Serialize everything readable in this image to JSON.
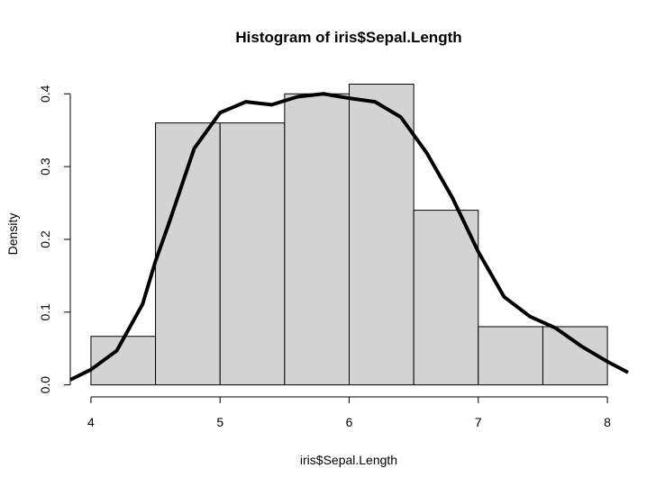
{
  "chart_data": {
    "type": "histogram",
    "title": "Histogram of iris$Sepal.Length",
    "xlabel": "iris$Sepal.Length",
    "ylabel": "Density",
    "bins": [
      4,
      4.5,
      5,
      5.5,
      6,
      6.5,
      7,
      7.5,
      8
    ],
    "values": [
      0.0667,
      0.36,
      0.36,
      0.4,
      0.4133,
      0.24,
      0.08,
      0.08
    ],
    "color": "#d3d3d3",
    "density": {
      "color": "#000000",
      "x": [
        3.84,
        4.0,
        4.2,
        4.4,
        4.5,
        4.6,
        4.8,
        5.0,
        5.2,
        5.4,
        5.6,
        5.8,
        6.0,
        6.2,
        6.4,
        6.6,
        6.8,
        7.0,
        7.2,
        7.4,
        7.6,
        7.8,
        8.0,
        8.16
      ],
      "values": [
        0.007,
        0.021,
        0.047,
        0.111,
        0.17,
        0.22,
        0.325,
        0.374,
        0.389,
        0.385,
        0.396,
        0.4,
        0.394,
        0.389,
        0.368,
        0.319,
        0.257,
        0.183,
        0.121,
        0.094,
        0.078,
        0.053,
        0.032,
        0.017
      ]
    },
    "xlim": [
      3.84,
      8.16
    ],
    "ylim": [
      -0.0165,
      0.43
    ],
    "xticks": [
      4,
      5,
      6,
      7,
      8
    ],
    "yticks": [
      {
        "value": 0,
        "label": "0.0"
      },
      0.1,
      0.2,
      0.3,
      0.4
    ]
  }
}
